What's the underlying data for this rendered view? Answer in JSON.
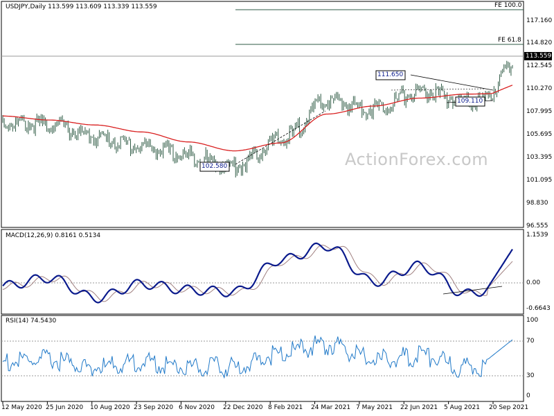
{
  "colors": {
    "background": "#ffffff",
    "bars": "#2e5a44",
    "ma": "#d92020",
    "macd_line": "#0a1a8c",
    "macd_signal": "#a08080",
    "rsi": "#1e78c8",
    "current_price_bg": "#000000",
    "grid": "#999999"
  },
  "price_panel": {
    "title": "USDJPY,Daily  113.599 113.609 113.339 113.559",
    "current_price_label": "113.559",
    "fe_100_label": "FE 100.0",
    "fe_618_label": "FE 61.8",
    "y_labels": [
      "117.160",
      "114.820",
      "112.545",
      "110.270",
      "107.995",
      "105.695",
      "103.395",
      "101.095",
      "98.830",
      "96.555"
    ],
    "annotations": {
      "a1": "111.650",
      "a2": "109.110",
      "a3": "102.580"
    },
    "watermark": "ActionForex.com"
  },
  "macd_panel": {
    "title": "MACD(12,26,9) 0.8161 0.5134",
    "y_labels": [
      "1.1539",
      "0.00",
      "-0.6643"
    ]
  },
  "rsi_panel": {
    "title": "RSI(14) 74.5430",
    "y_labels": [
      "100",
      "70",
      "30",
      "0"
    ]
  },
  "x_labels": [
    "12 May 2020",
    "25 Jun 2020",
    "10 Aug 2020",
    "23 Sep 2020",
    "6 Nov 2020",
    "22 Dec 2020",
    "8 Feb 2021",
    "24 Mar 2021",
    "7 May 2021",
    "22 Jun 2021",
    "5 Aug 2021",
    "20 Sep 2021"
  ],
  "chart_data": [
    {
      "type": "line",
      "series": [
        {
          "name": "USDJPY",
          "x": [
            "12 May 2020",
            "25 Jun 2020",
            "10 Aug 2020",
            "23 Sep 2020",
            "6 Nov 2020",
            "22 Dec 2020",
            "8 Feb 2021",
            "24 Mar 2021",
            "7 May 2021",
            "22 Jun 2021",
            "5 Aug 2021",
            "20 Sep 2021"
          ],
          "values": [
            107.3,
            107.2,
            105.9,
            105.0,
            104.0,
            103.0,
            105.6,
            109.5,
            108.8,
            110.5,
            109.5,
            109.9
          ]
        },
        {
          "name": "MA",
          "x": [
            "12 May 2020",
            "25 Jun 2020",
            "10 Aug 2020",
            "23 Sep 2020",
            "6 Nov 2020",
            "22 Dec 2020",
            "8 Feb 2021",
            "24 Mar 2021",
            "7 May 2021",
            "22 Jun 2021",
            "5 Aug 2021",
            "20 Sep 2021"
          ],
          "values": [
            107.6,
            107.2,
            106.7,
            106.0,
            105.0,
            104.1,
            104.9,
            107.8,
            108.6,
            109.4,
            109.8,
            109.9
          ]
        }
      ],
      "last_close": 113.559,
      "ylim": [
        96.555,
        117.16
      ]
    },
    {
      "type": "line",
      "series": [
        {
          "name": "MACD(12,26,9)",
          "x": [
            "12 May 2020",
            "25 Jun 2020",
            "10 Aug 2020",
            "23 Sep 2020",
            "6 Nov 2020",
            "22 Dec 2020",
            "8 Feb 2021",
            "24 Mar 2021",
            "7 May 2021",
            "22 Jun 2021",
            "5 Aug 2021",
            "20 Sep 2021"
          ],
          "values": [
            -0.1,
            0.1,
            -0.4,
            -0.05,
            -0.2,
            -0.25,
            0.55,
            0.9,
            0.0,
            0.4,
            -0.3,
            0.0
          ]
        }
      ],
      "last_values": [
        0.8161,
        0.5134
      ],
      "ylim": [
        -0.6643,
        1.1539
      ]
    },
    {
      "type": "line",
      "series": [
        {
          "name": "RSI(14)",
          "x": [
            "12 May 2020",
            "25 Jun 2020",
            "10 Aug 2020",
            "23 Sep 2020",
            "6 Nov 2020",
            "22 Dec 2020",
            "8 Feb 2021",
            "24 Mar 2021",
            "7 May 2021",
            "22 Jun 2021",
            "5 Aug 2021",
            "20 Sep 2021"
          ],
          "values": [
            52,
            55,
            45,
            52,
            46,
            45,
            64,
            75,
            55,
            60,
            45,
            52
          ]
        }
      ],
      "last_value": 74.543,
      "ylim": [
        0,
        100
      ],
      "reference_levels": [
        70,
        30
      ]
    }
  ]
}
